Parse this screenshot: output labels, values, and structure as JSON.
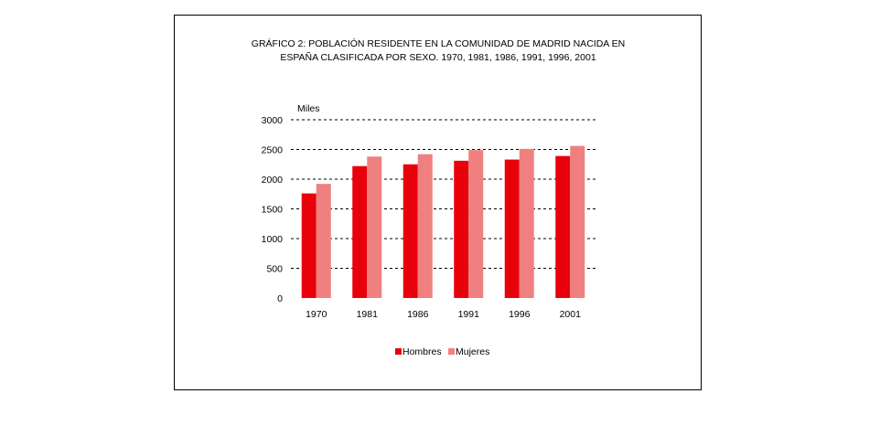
{
  "chart_data": {
    "type": "bar",
    "title_lines": [
      "GRÁFICO 2: POBLACIÓN RESIDENTE EN LA COMUNIDAD DE MADRID NACIDA EN",
      "ESPAÑA CLASIFICADA POR SEXO. 1970, 1981, 1986, 1991, 1996, 2001"
    ],
    "ylabel": "Miles",
    "xlabel": "",
    "ylim": [
      0,
      3000
    ],
    "yticks": [
      0,
      500,
      1000,
      1500,
      2000,
      2500,
      3000
    ],
    "grid": "dashed horizontal",
    "legend_position": "bottom",
    "categories": [
      "1970",
      "1981",
      "1986",
      "1991",
      "1996",
      "2001"
    ],
    "series": [
      {
        "name": "Hombres",
        "color": "#e8000b",
        "values": [
          1760,
          2220,
          2250,
          2310,
          2330,
          2390
        ]
      },
      {
        "name": "Mujeres",
        "color": "#f08080",
        "values": [
          1920,
          2380,
          2420,
          2490,
          2510,
          2560
        ]
      }
    ]
  }
}
